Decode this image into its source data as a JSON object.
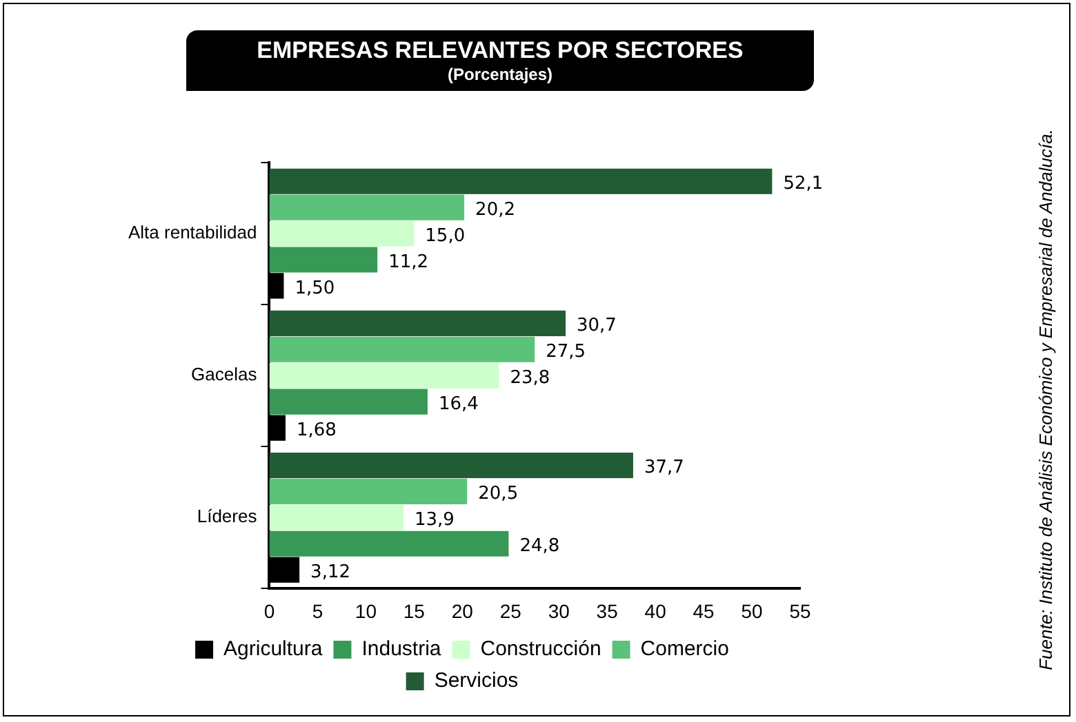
{
  "chart_data": {
    "type": "bar",
    "orientation": "horizontal",
    "title": "EMPRESAS RELEVANTES POR SECTORES",
    "subtitle": "(Porcentajes)",
    "categories": [
      "Alta rentabilidad",
      "Gacelas",
      "Líderes"
    ],
    "series": [
      {
        "name": "Agricultura",
        "color": "#000000",
        "values": [
          1.5,
          1.68,
          3.12
        ],
        "value_labels": [
          "1,50",
          "1,68",
          "3,12"
        ]
      },
      {
        "name": "Industria",
        "color": "#379955",
        "values": [
          11.2,
          16.4,
          24.8
        ],
        "value_labels": [
          "11,2",
          "16,4",
          "24,8"
        ]
      },
      {
        "name": "Construcción",
        "color": "#ccffcc",
        "values": [
          15.0,
          23.8,
          13.9
        ],
        "value_labels": [
          "15,0",
          "23,8",
          "13,9"
        ]
      },
      {
        "name": "Comercio",
        "color": "#5bc27a",
        "values": [
          20.2,
          27.5,
          20.5
        ],
        "value_labels": [
          "20,2",
          "27,5",
          "20,5"
        ]
      },
      {
        "name": "Servicios",
        "color": "#225c35",
        "values": [
          52.1,
          30.7,
          37.7
        ],
        "value_labels": [
          "52,1",
          "30,7",
          "37,7"
        ]
      }
    ],
    "xlim": [
      0,
      55
    ],
    "xticks": [
      0,
      5,
      10,
      15,
      20,
      25,
      30,
      35,
      40,
      45,
      50,
      55
    ],
    "grid": false,
    "legend": "bottom",
    "annotations": [
      "Fuente: Instituto de Análisis Económico y Empresarial de Andalucía."
    ]
  }
}
